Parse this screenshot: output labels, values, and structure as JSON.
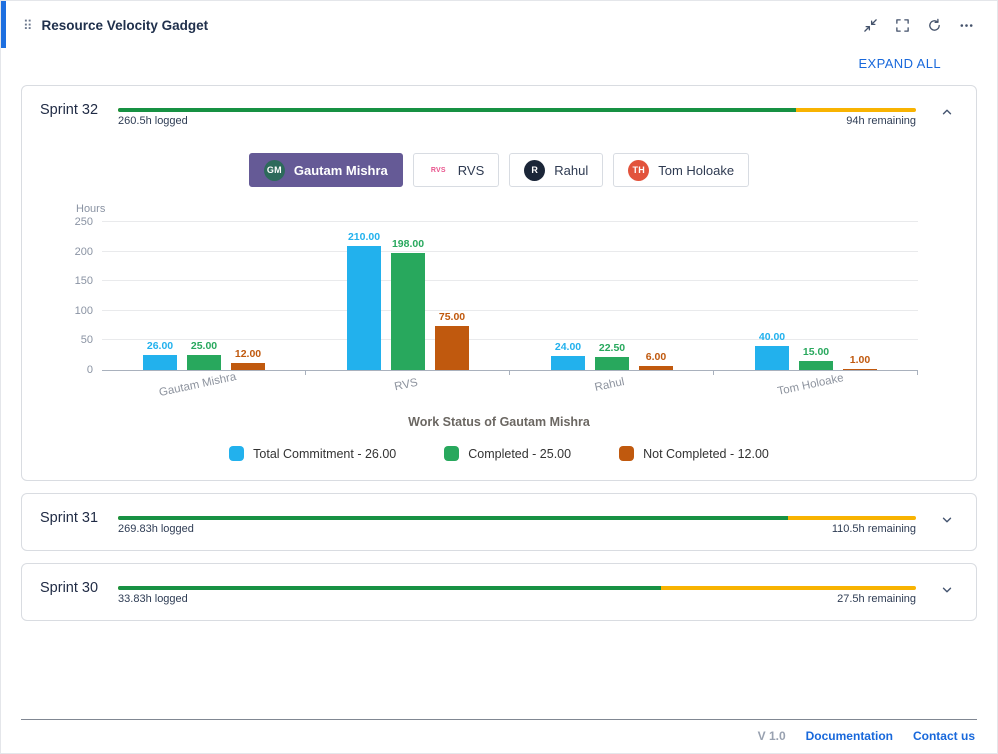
{
  "colors": {
    "accent_blue": "#1d6fe0",
    "link_blue": "#1868db",
    "selected_tab_purple": "#655a96",
    "progress_green": "#179143",
    "progress_yellow": "#f8b301",
    "bar_blue": "#22b1ed",
    "bar_green": "#28a85d",
    "bar_orange": "#c0590e"
  },
  "icons": {
    "drag_handle": "braille-dots-grid",
    "collapse": "arrows-inward",
    "fullscreen": "corner-brackets",
    "refresh": "circular-arrows",
    "more": "horizontal-ellipsis",
    "sprint_expanded": "chevron-up",
    "sprint_collapsed": "chevron-down"
  },
  "header": {
    "title": "Resource Velocity Gadget"
  },
  "expand_all_label": "EXPAND ALL",
  "sprints": [
    {
      "name": "Sprint 32",
      "logged": "260.5h logged",
      "remaining": "94h remaining",
      "progress_pct": 85,
      "expanded": true
    },
    {
      "name": "Sprint 31",
      "logged": "269.83h logged",
      "remaining": "110.5h remaining",
      "progress_pct": 84,
      "expanded": false
    },
    {
      "name": "Sprint 30",
      "logged": "33.83h logged",
      "remaining": "27.5h remaining",
      "progress_pct": 68,
      "expanded": false
    }
  ],
  "resource_tabs": [
    {
      "label": "Gautam Mishra",
      "initials": "GM",
      "avatar_bg": "#2d6a5b",
      "avatar_fg": "#ffffff",
      "selected": true
    },
    {
      "label": "RVS",
      "initials": "RVS",
      "avatar_bg": "#ffffff",
      "avatar_fg": "#e9538c",
      "selected": false
    },
    {
      "label": "Rahul",
      "initials": "R",
      "avatar_bg": "#1b2638",
      "avatar_fg": "#ffffff",
      "selected": false
    },
    {
      "label": "Tom Holoake",
      "initials": "TH",
      "avatar_bg": "#e2533c",
      "avatar_fg": "#ffffff",
      "selected": false
    }
  ],
  "chart_data": {
    "type": "bar",
    "title": "Work Status of Gautam Mishra",
    "ylabel": "Hours",
    "ylim": [
      0,
      250
    ],
    "yticks": [
      0,
      50,
      100,
      150,
      200,
      250
    ],
    "grid": true,
    "legend_position": "bottom",
    "categories": [
      "Gautam Mishra",
      "RVS",
      "Rahul",
      "Tom Holoake"
    ],
    "series": [
      {
        "name": "Total Commitment",
        "color": "#22b1ed",
        "values": [
          26.0,
          210.0,
          24.0,
          40.0
        ]
      },
      {
        "name": "Completed",
        "color": "#28a85d",
        "values": [
          25.0,
          198.0,
          22.5,
          15.0
        ]
      },
      {
        "name": "Not Completed",
        "color": "#c0590e",
        "values": [
          12.0,
          75.0,
          6.0,
          1.0
        ]
      }
    ],
    "legend": [
      {
        "label": "Total Commitment - 26.00",
        "color": "#22b1ed"
      },
      {
        "label": "Completed  - 25.00",
        "color": "#28a85d"
      },
      {
        "label": "Not Completed  - 12.00",
        "color": "#c0590e"
      }
    ]
  },
  "footer": {
    "version": "V 1.0",
    "documentation_label": "Documentation",
    "contact_label": "Contact us"
  }
}
